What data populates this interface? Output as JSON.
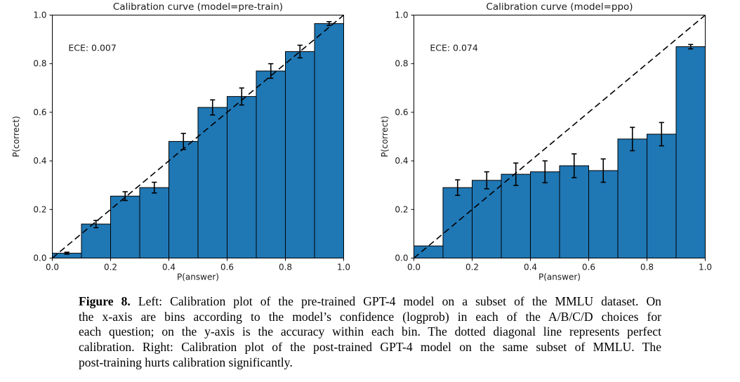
{
  "colors": {
    "bar_fill": "#1f77b4",
    "bar_edge": "#000000",
    "diagonal": "#000000",
    "error_bar": "#000000",
    "axis": "#000000",
    "text": "#1a1a1a"
  },
  "chart_data": [
    {
      "type": "bar",
      "title": "Calibration curve (model=pre-train)",
      "annotation": "ECE: 0.007",
      "xlabel": "P(answer)",
      "ylabel": "P(correct)",
      "xlim": [
        0,
        1
      ],
      "ylim": [
        0,
        1
      ],
      "grid": false,
      "diagonal_reference_line": true,
      "xticks": {
        "values": [
          0,
          0.2,
          0.4,
          0.6,
          0.8,
          1.0
        ],
        "labels": [
          "0.0",
          "0.2",
          "0.4",
          "0.6",
          "0.8",
          "1.0"
        ]
      },
      "yticks": {
        "values": [
          0,
          0.2,
          0.4,
          0.6,
          0.8,
          1.0
        ],
        "labels": [
          "0.0",
          "0.2",
          "0.4",
          "0.6",
          "0.8",
          "1.0"
        ]
      },
      "bin_edges": [
        0.0,
        0.1,
        0.2,
        0.3,
        0.4,
        0.5,
        0.6,
        0.7,
        0.8,
        0.9,
        1.0
      ],
      "values": [
        0.02,
        0.14,
        0.255,
        0.29,
        0.48,
        0.62,
        0.665,
        0.77,
        0.85,
        0.965
      ],
      "errors": [
        0.004,
        0.015,
        0.018,
        0.022,
        0.033,
        0.031,
        0.035,
        0.03,
        0.026,
        0.008
      ]
    },
    {
      "type": "bar",
      "title": "Calibration curve (model=ppo)",
      "annotation": "ECE: 0.074",
      "xlabel": "P(answer)",
      "ylabel": "P(correct)",
      "xlim": [
        0,
        1
      ],
      "ylim": [
        0,
        1
      ],
      "grid": false,
      "diagonal_reference_line": true,
      "xticks": {
        "values": [
          0,
          0.2,
          0.4,
          0.6,
          0.8,
          1.0
        ],
        "labels": [
          "0.0",
          "0.2",
          "0.4",
          "0.6",
          "0.8",
          "1.0"
        ]
      },
      "yticks": {
        "values": [
          0,
          0.2,
          0.4,
          0.6,
          0.8,
          1.0
        ],
        "labels": [
          "0.0",
          "0.2",
          "0.4",
          "0.6",
          "0.8",
          "1.0"
        ]
      },
      "bin_edges": [
        0.0,
        0.1,
        0.2,
        0.3,
        0.4,
        0.5,
        0.6,
        0.7,
        0.8,
        0.9,
        1.0
      ],
      "values": [
        0.05,
        0.29,
        0.32,
        0.345,
        0.355,
        0.38,
        0.36,
        0.49,
        0.51,
        0.87
      ],
      "errors": [
        null,
        0.032,
        0.035,
        0.046,
        0.045,
        0.049,
        0.048,
        0.048,
        0.048,
        0.009
      ]
    }
  ],
  "caption": {
    "bold_label": "Figure 8.",
    "lines": [
      "Left: Calibration plot of the pre-trained GPT-4 model on a subset of the MMLU dataset. On",
      "the x-axis are bins according to the model’s confidence (logprob) in each of the A/B/C/D choices for",
      "each question; on the y-axis is the accuracy within each bin. The dotted diagonal line represents perfect",
      "calibration. Right: Calibration plot of the post-trained GPT-4 model on the same subset of MMLU. The",
      "post-training hurts calibration significantly."
    ]
  }
}
